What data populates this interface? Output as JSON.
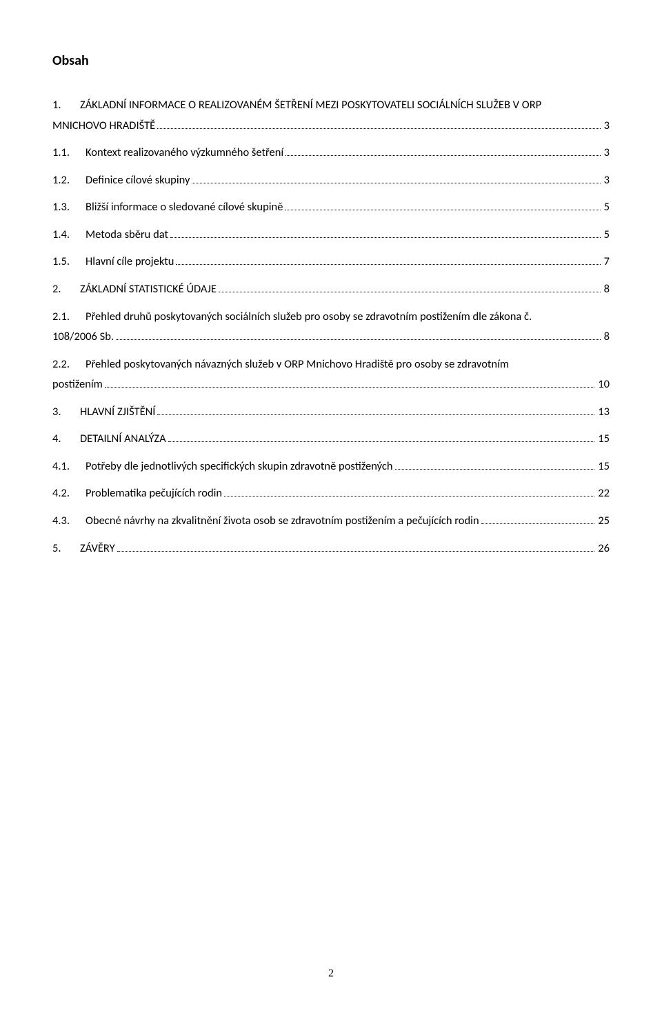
{
  "title": "Obsah",
  "page_number": "2",
  "toc": [
    {
      "num": "1.",
      "num_class": "main",
      "text": "ZÁKLADNÍ INFORMACE O REALIZOVANÉM ŠETŘENÍ MEZI POSKYTOVATELI SOCIÁLNÍCH SLUŽEB V ORP",
      "wrap_text": "MNICHOVO HRADIŠTĚ",
      "page": "3"
    },
    {
      "num": "1.1.",
      "num_class": "sub",
      "text": "Kontext realizovaného výzkumného šetření",
      "page": "3"
    },
    {
      "num": "1.2.",
      "num_class": "sub",
      "text": "Definice cílové skupiny",
      "page": "3"
    },
    {
      "num": "1.3.",
      "num_class": "sub",
      "text": "Bližší informace o sledované cílové skupině",
      "page": "5"
    },
    {
      "num": "1.4.",
      "num_class": "sub",
      "text": "Metoda sběru dat",
      "page": "5"
    },
    {
      "num": "1.5.",
      "num_class": "sub",
      "text": "Hlavní cíle projektu",
      "page": "7"
    },
    {
      "num": "2.",
      "num_class": "main",
      "text": "ZÁKLADNÍ STATISTICKÉ ÚDAJE",
      "page": "8"
    },
    {
      "num": "2.1.",
      "num_class": "sub",
      "text": "Přehled druhů poskytovaných sociálních služeb pro osoby se zdravotním postižením dle zákona č.",
      "wrap_text": "108/2006 Sb. ",
      "page": "8"
    },
    {
      "num": "2.2.",
      "num_class": "sub",
      "text": "Přehled poskytovaných návazných služeb v ORP Mnichovo Hradiště pro osoby se zdravotním",
      "wrap_text": "postižením",
      "page": "10"
    },
    {
      "num": "3.",
      "num_class": "main",
      "text": "HLAVNÍ ZJIŠTĚNÍ",
      "page": "13"
    },
    {
      "num": "4.",
      "num_class": "main",
      "text": "DETAILNÍ ANALÝZA",
      "page": "15"
    },
    {
      "num": "4.1.",
      "num_class": "sub",
      "text": "Potřeby dle jednotlivých specifických skupin zdravotně postižených",
      "page": "15"
    },
    {
      "num": "4.2.",
      "num_class": "sub",
      "text": "Problematika pečujících rodin",
      "page": "22"
    },
    {
      "num": "4.3.",
      "num_class": "sub",
      "text": "Obecné návrhy na zkvalitnění života osob se zdravotním postižením a pečujících rodin",
      "page": "25"
    },
    {
      "num": "5.",
      "num_class": "main",
      "text": "ZÁVĚRY",
      "page": "26"
    }
  ]
}
